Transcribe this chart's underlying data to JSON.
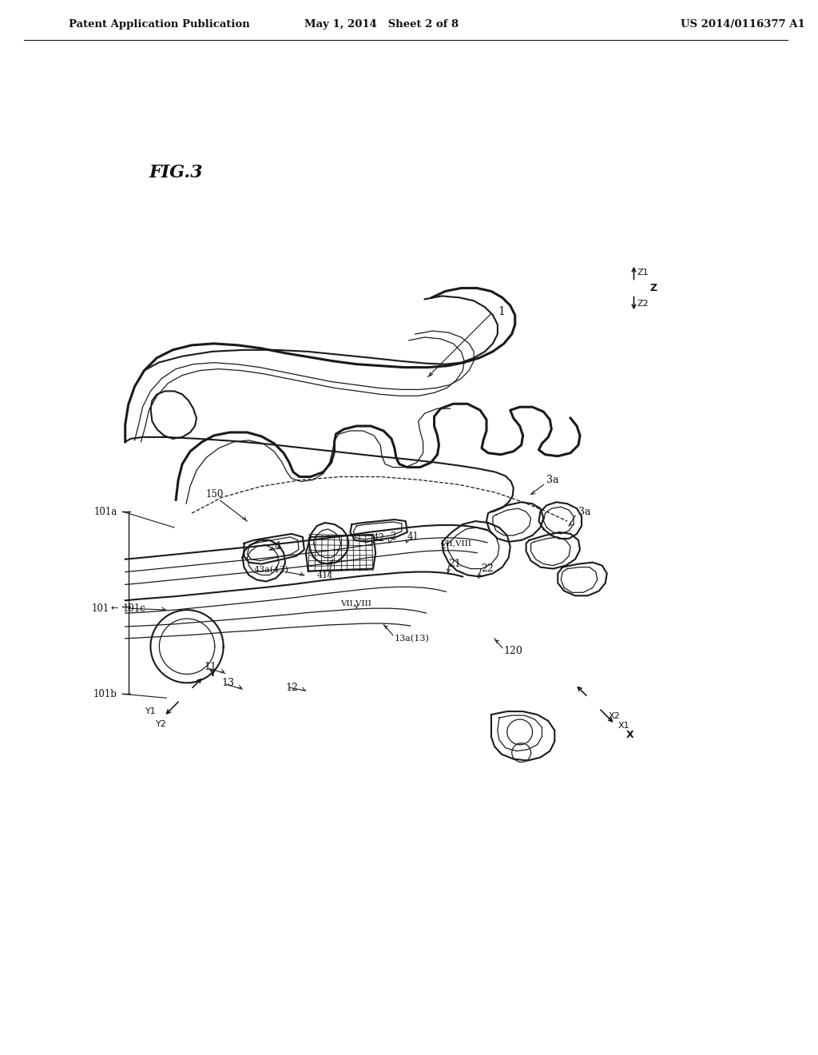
{
  "background_color": "#ffffff",
  "line_color": "#1a1a1a",
  "text_color": "#111111",
  "header_left": "Patent Application Publication",
  "header_center": "May 1, 2014   Sheet 2 of 8",
  "header_right": "US 2014/0116377 A1",
  "header_fontsize": 9.5,
  "title": "FIG.3",
  "title_fontsize": 16,
  "fig_width": 10.24,
  "fig_height": 13.2,
  "dpi": 100
}
